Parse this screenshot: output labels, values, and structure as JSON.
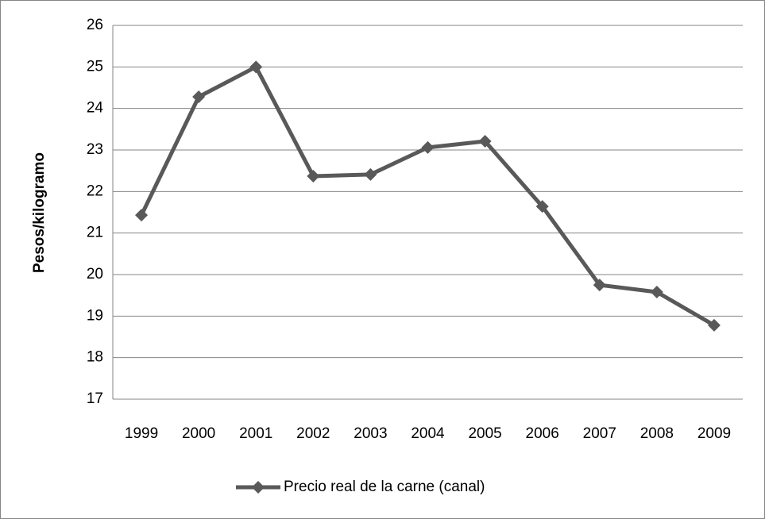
{
  "chart_data": {
    "type": "line",
    "y_axis_label": "Pesos/kilogramo",
    "categories": [
      "1999",
      "2000",
      "2001",
      "2002",
      "2003",
      "2004",
      "2005",
      "2006",
      "2007",
      "2008",
      "2009"
    ],
    "series": [
      {
        "name": "Precio real de la carne (canal)",
        "color": "#595959",
        "values": [
          21.43,
          24.28,
          25.0,
          22.37,
          22.41,
          23.06,
          23.21,
          21.64,
          19.75,
          19.58,
          18.78
        ]
      }
    ],
    "ylim": [
      17,
      26
    ],
    "yticks": [
      17,
      18,
      19,
      20,
      21,
      22,
      23,
      24,
      25,
      26
    ],
    "grid": true,
    "legend": "bottom"
  }
}
